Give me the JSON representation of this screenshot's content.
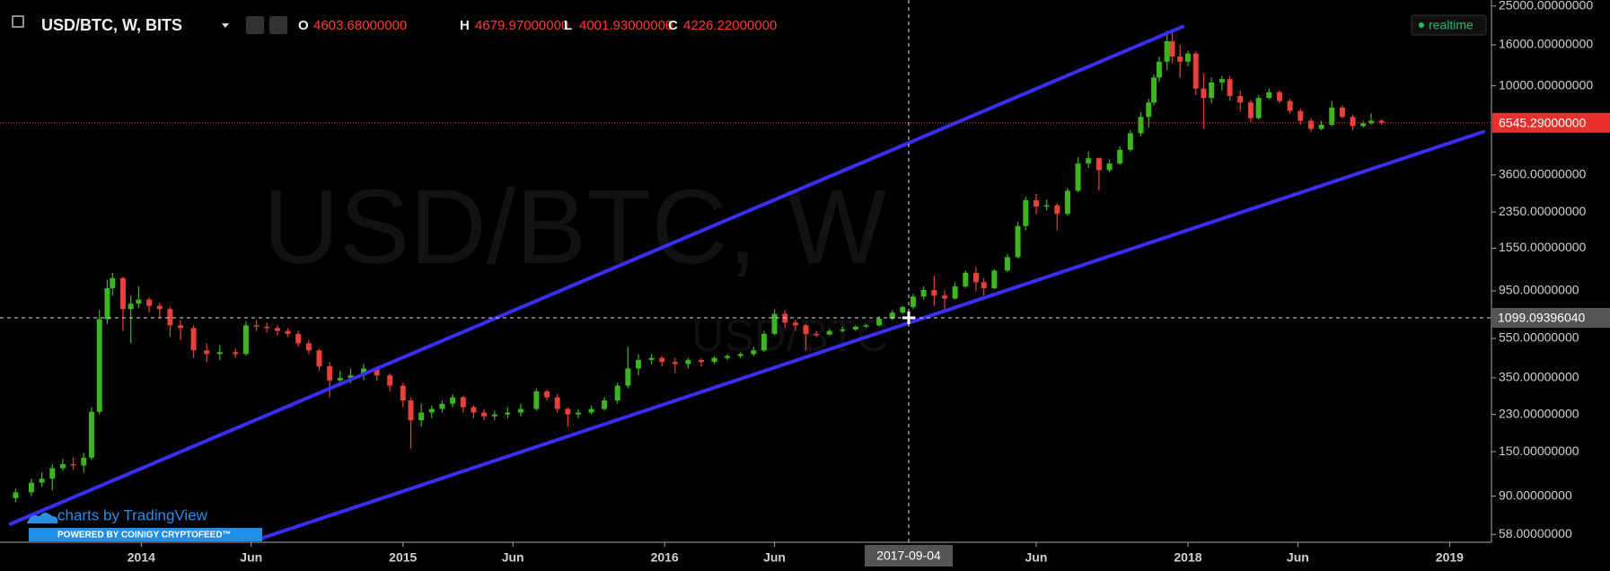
{
  "header": {
    "symbol": "USD/BTC, W, BITS",
    "ohlc": [
      {
        "key": "O",
        "text": "4603.68000000"
      },
      {
        "key": "H",
        "text": "4679.97000000"
      },
      {
        "key": "L",
        "text": "4001.93000000"
      },
      {
        "key": "C",
        "text": "4226.22000000"
      }
    ],
    "status": "realtime"
  },
  "watermark": {
    "main": "USD/BTC, W",
    "sub": "USD/BTC"
  },
  "branding": {
    "logo": "charts by TradingView",
    "banner": "POWERED BY COINIGY CRYPTOFEED™"
  },
  "crosshair": {
    "x_label": "2017-09-04",
    "y_label": "1099.09396040"
  },
  "chart_data": {
    "type": "candlestick",
    "log_y": true,
    "up_color": "#3cb521",
    "down_color": "#e8413c",
    "xlim": [
      2013.46,
      2019.16
    ],
    "ylim": [
      53,
      26800
    ],
    "xticks": [
      {
        "value": 2014,
        "label": "2014"
      },
      {
        "value": 2014.42,
        "label": "Jun"
      },
      {
        "value": 2015,
        "label": "2015"
      },
      {
        "value": 2015.42,
        "label": "Jun"
      },
      {
        "value": 2016,
        "label": "2016"
      },
      {
        "value": 2016.42,
        "label": "Jun"
      },
      {
        "value": 2017.42,
        "label": "Jun"
      },
      {
        "value": 2018,
        "label": "2018"
      },
      {
        "value": 2018.42,
        "label": "Jun"
      },
      {
        "value": 2019,
        "label": "2019"
      }
    ],
    "yticks": [
      {
        "value": 25000,
        "label": "25000.00000000"
      },
      {
        "value": 16000,
        "label": "16000.00000000"
      },
      {
        "value": 10000,
        "label": "10000.00000000"
      },
      {
        "value": 3600,
        "label": "3600.00000000"
      },
      {
        "value": 2350,
        "label": "2350.00000000"
      },
      {
        "value": 1550,
        "label": "1550.00000000"
      },
      {
        "value": 950,
        "label": "950.00000000"
      },
      {
        "value": 550,
        "label": "550.00000000"
      },
      {
        "value": 350,
        "label": "350.00000000"
      },
      {
        "value": 230,
        "label": "230.00000000"
      },
      {
        "value": 150,
        "label": "150.00000000"
      },
      {
        "value": 90,
        "label": "90.00000000"
      },
      {
        "value": 58,
        "label": "58.00000000"
      }
    ],
    "last_price": {
      "value": 6545.29,
      "label": "6545.29000000",
      "color": "#e8312c"
    },
    "trendlines": [
      {
        "color": "#3a2ff5",
        "x": [
          2013.5,
          2017.98
        ],
        "y": [
          65.4,
          19740
        ]
      },
      {
        "color": "#3a2ff5",
        "x": [
          2014.46,
          2019.13
        ],
        "y": [
          55.5,
          5912
        ]
      }
    ],
    "x": [
      2013.52,
      2013.58,
      2013.62,
      2013.66,
      2013.7,
      2013.74,
      2013.78,
      2013.81,
      2013.84,
      2013.87,
      2013.89,
      2013.93,
      2013.96,
      2013.99,
      2014.03,
      2014.07,
      2014.11,
      2014.15,
      2014.2,
      2014.25,
      2014.3,
      2014.36,
      2014.4,
      2014.44,
      2014.48,
      2014.52,
      2014.56,
      2014.6,
      2014.64,
      2014.68,
      2014.72,
      2014.76,
      2014.8,
      2014.85,
      2014.9,
      2014.95,
      2015.0,
      2015.03,
      2015.07,
      2015.11,
      2015.15,
      2015.19,
      2015.23,
      2015.27,
      2015.31,
      2015.35,
      2015.4,
      2015.45,
      2015.51,
      2015.55,
      2015.59,
      2015.63,
      2015.67,
      2015.72,
      2015.77,
      2015.82,
      2015.86,
      2015.9,
      2015.95,
      2015.99,
      2016.04,
      2016.09,
      2016.14,
      2016.19,
      2016.24,
      2016.29,
      2016.34,
      2016.38,
      2016.42,
      2016.46,
      2016.5,
      2016.54,
      2016.58,
      2016.63,
      2016.68,
      2016.73,
      2016.77,
      2016.82,
      2016.87,
      2016.91,
      2016.95,
      2016.99,
      2017.03,
      2017.07,
      2017.11,
      2017.15,
      2017.19,
      2017.22,
      2017.26,
      2017.31,
      2017.35,
      2017.38,
      2017.42,
      2017.46,
      2017.5,
      2017.54,
      2017.58,
      2017.62,
      2017.66,
      2017.7,
      2017.74,
      2017.78,
      2017.82,
      2017.85,
      2017.87,
      2017.89,
      2017.92,
      2017.94,
      2017.97,
      2018.0,
      2018.03,
      2018.06,
      2018.09,
      2018.13,
      2018.16,
      2018.2,
      2018.24,
      2018.27,
      2018.31,
      2018.35,
      2018.39,
      2018.43,
      2018.47,
      2018.51,
      2018.55,
      2018.59,
      2018.63,
      2018.67,
      2018.7,
      2018.74
    ],
    "open": [
      88,
      94,
      105,
      110,
      124,
      130,
      128,
      140,
      237,
      687,
      980,
      1100,
      770,
      820,
      860,
      800,
      770,
      640,
      620,
      480,
      460,
      470,
      460,
      640,
      630,
      620,
      600,
      580,
      520,
      480,
      400,
      340,
      350,
      360,
      390,
      360,
      320,
      270,
      215,
      235,
      245,
      260,
      280,
      250,
      235,
      225,
      230,
      235,
      245,
      300,
      280,
      245,
      230,
      235,
      245,
      270,
      320,
      390,
      430,
      440,
      420,
      410,
      430,
      420,
      440,
      450,
      460,
      480,
      580,
      730,
      660,
      640,
      580,
      575,
      600,
      610,
      630,
      640,
      690,
      740,
      790,
      890,
      960,
      900,
      870,
      1000,
      1170,
      1050,
      980,
      1200,
      1400,
      2000,
      2690,
      2500,
      2540,
      2300,
      3000,
      4100,
      4360,
      3800,
      4100,
      4800,
      5800,
      7000,
      8260,
      11000,
      13200,
      16700,
      14000,
      13200,
      14500,
      9700,
      8700,
      10400,
      10800,
      8900,
      8260,
      6900,
      8700,
      9300,
      8400,
      7500,
      6700,
      6100,
      6400,
      7800,
      7000,
      6300,
      6500,
      6700
    ],
    "high": [
      98,
      110,
      118,
      130,
      138,
      140,
      148,
      250,
      760,
      1080,
      1170,
      1120,
      900,
      1000,
      880,
      830,
      790,
      680,
      640,
      520,
      510,
      490,
      670,
      680,
      660,
      640,
      620,
      600,
      540,
      490,
      420,
      380,
      390,
      410,
      400,
      370,
      330,
      280,
      260,
      255,
      270,
      290,
      285,
      255,
      245,
      240,
      250,
      260,
      310,
      305,
      290,
      250,
      245,
      255,
      280,
      330,
      500,
      460,
      460,
      450,
      440,
      440,
      440,
      450,
      460,
      470,
      500,
      600,
      770,
      760,
      680,
      650,
      600,
      615,
      630,
      640,
      650,
      710,
      760,
      800,
      920,
      1000,
      1130,
      960,
      1050,
      1200,
      1250,
      1100,
      1220,
      1450,
      2100,
      2800,
      2900,
      2700,
      2600,
      3100,
      4400,
      4700,
      4400,
      4300,
      5000,
      6000,
      7400,
      8600,
      11400,
      14000,
      18800,
      19000,
      16000,
      15000,
      14800,
      11500,
      11000,
      11200,
      11200,
      9500,
      8500,
      9000,
      9700,
      9500,
      8600,
      7700,
      6900,
      6700,
      8400,
      8000,
      7200,
      6700,
      7300,
      6800
    ],
    "low": [
      84,
      90,
      100,
      96,
      120,
      122,
      118,
      136,
      230,
      650,
      900,
      600,
      520,
      780,
      740,
      700,
      560,
      540,
      440,
      420,
      430,
      440,
      450,
      600,
      590,
      570,
      560,
      500,
      460,
      380,
      280,
      320,
      330,
      340,
      340,
      300,
      250,
      155,
      200,
      220,
      235,
      250,
      235,
      220,
      215,
      215,
      220,
      225,
      240,
      270,
      235,
      200,
      220,
      230,
      240,
      260,
      310,
      360,
      410,
      400,
      370,
      390,
      400,
      410,
      430,
      440,
      450,
      470,
      570,
      620,
      600,
      480,
      560,
      570,
      590,
      600,
      620,
      630,
      680,
      730,
      770,
      860,
      800,
      760,
      860,
      980,
      950,
      900,
      970,
      1180,
      1380,
      1900,
      2300,
      2400,
      1900,
      2250,
      2950,
      3900,
      3000,
      3700,
      4050,
      4700,
      5600,
      6200,
      8000,
      10500,
      12000,
      13000,
      11000,
      12500,
      9000,
      6100,
      8200,
      9500,
      8400,
      7500,
      6600,
      6800,
      8600,
      8200,
      7300,
      6400,
      5900,
      6000,
      6300,
      6900,
      6000,
      6200,
      6400,
      6400
    ],
    "close": [
      94,
      105,
      110,
      124,
      130,
      128,
      140,
      237,
      687,
      980,
      1100,
      770,
      820,
      860,
      800,
      770,
      640,
      620,
      480,
      460,
      470,
      460,
      640,
      630,
      620,
      600,
      580,
      520,
      480,
      400,
      340,
      350,
      360,
      390,
      360,
      320,
      270,
      215,
      235,
      245,
      260,
      280,
      250,
      235,
      225,
      230,
      235,
      245,
      300,
      280,
      245,
      230,
      235,
      245,
      270,
      320,
      390,
      430,
      440,
      420,
      410,
      430,
      420,
      440,
      450,
      460,
      480,
      580,
      730,
      660,
      640,
      580,
      575,
      600,
      610,
      630,
      640,
      690,
      740,
      790,
      890,
      960,
      900,
      870,
      1000,
      1170,
      1050,
      980,
      1200,
      1400,
      2000,
      2690,
      2500,
      2540,
      2300,
      3000,
      4100,
      4360,
      3800,
      4100,
      4800,
      5800,
      7000,
      8260,
      11000,
      13200,
      16700,
      14000,
      13200,
      14500,
      9700,
      8700,
      10400,
      10800,
      8900,
      8260,
      6900,
      8700,
      9300,
      8400,
      7500,
      6700,
      6100,
      6400,
      7800,
      7000,
      6300,
      6500,
      6700,
      6545
    ]
  }
}
